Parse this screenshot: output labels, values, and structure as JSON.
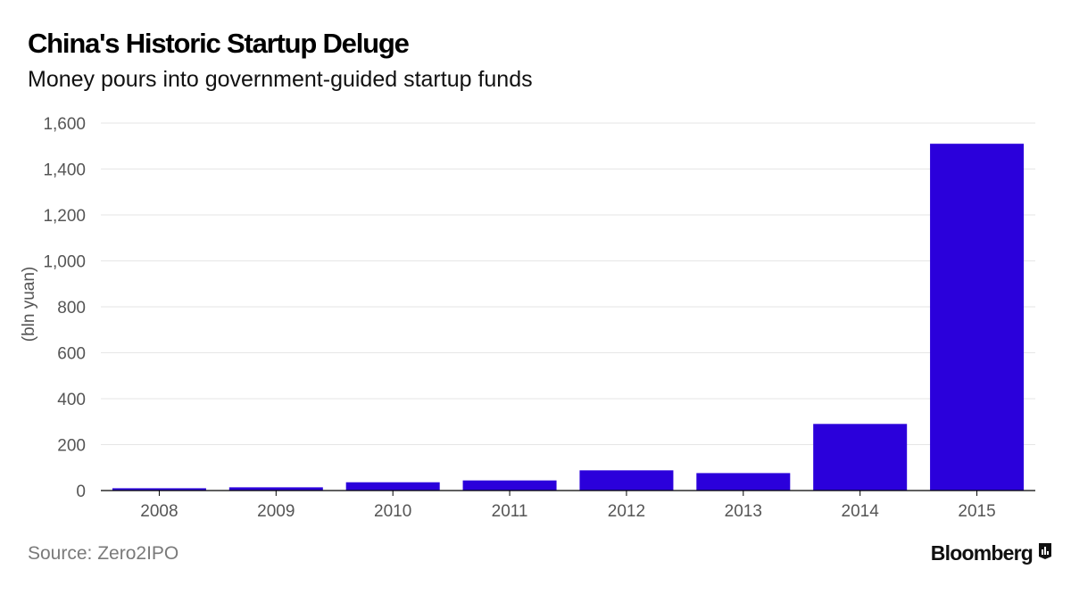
{
  "header": {
    "title": "China's Historic Startup Deluge",
    "subtitle": "Money pours into government-guided startup funds"
  },
  "footer": {
    "source": "Source: Zero2IPO",
    "brand": "Bloomberg",
    "brand_icon": "bloomberg-chart-icon"
  },
  "colors": {
    "bar": "#2b00db",
    "grid": "#e6e6e6",
    "axis": "#000000"
  },
  "chart_data": {
    "type": "bar",
    "title": "China's Historic Startup Deluge",
    "subtitle": "Money pours into government-guided startup funds",
    "xlabel": "",
    "ylabel": "(bln yuan)",
    "categories": [
      "2008",
      "2009",
      "2010",
      "2011",
      "2012",
      "2013",
      "2014",
      "2015"
    ],
    "values": [
      10,
      14,
      36,
      44,
      88,
      76,
      290,
      1510
    ],
    "ylim": [
      0,
      1600
    ],
    "yticks": [
      0,
      200,
      400,
      600,
      800,
      1000,
      1200,
      1400,
      1600
    ],
    "ytick_labels": [
      "0",
      "200",
      "400",
      "600",
      "800",
      "1,000",
      "1,200",
      "1,400",
      "1,600"
    ],
    "grid": true,
    "legend": "none"
  }
}
